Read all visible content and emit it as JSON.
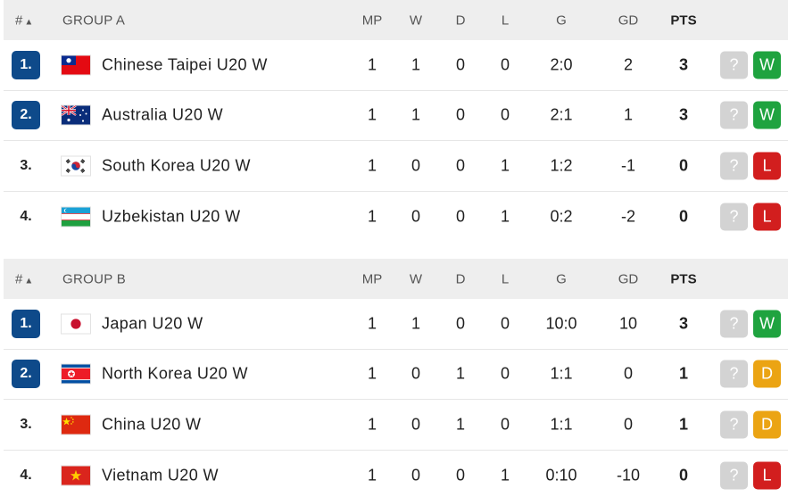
{
  "columns": {
    "rank": "#",
    "mp": "MP",
    "w": "W",
    "d": "D",
    "l": "L",
    "g": "G",
    "gd": "GD",
    "pts": "PTS"
  },
  "groups": [
    {
      "name": "GROUP A",
      "rows": [
        {
          "rank": "1.",
          "qualified": true,
          "team": "Chinese Taipei U20 W",
          "flag": "taiwan-flag-icon",
          "mp": "1",
          "w": "1",
          "d": "0",
          "l": "0",
          "g": "2:0",
          "gd": "2",
          "pts": "3",
          "next": "?",
          "form": "W"
        },
        {
          "rank": "2.",
          "qualified": true,
          "team": "Australia U20 W",
          "flag": "australia-flag-icon",
          "mp": "1",
          "w": "1",
          "d": "0",
          "l": "0",
          "g": "2:1",
          "gd": "1",
          "pts": "3",
          "next": "?",
          "form": "W"
        },
        {
          "rank": "3.",
          "qualified": false,
          "team": "South Korea U20 W",
          "flag": "south-korea-flag-icon",
          "mp": "1",
          "w": "0",
          "d": "0",
          "l": "1",
          "g": "1:2",
          "gd": "-1",
          "pts": "0",
          "next": "?",
          "form": "L"
        },
        {
          "rank": "4.",
          "qualified": false,
          "team": "Uzbekistan U20 W",
          "flag": "uzbekistan-flag-icon",
          "mp": "1",
          "w": "0",
          "d": "0",
          "l": "1",
          "g": "0:2",
          "gd": "-2",
          "pts": "0",
          "next": "?",
          "form": "L"
        }
      ]
    },
    {
      "name": "GROUP B",
      "rows": [
        {
          "rank": "1.",
          "qualified": true,
          "team": "Japan U20 W",
          "flag": "japan-flag-icon",
          "mp": "1",
          "w": "1",
          "d": "0",
          "l": "0",
          "g": "10:0",
          "gd": "10",
          "pts": "3",
          "next": "?",
          "form": "W"
        },
        {
          "rank": "2.",
          "qualified": true,
          "team": "North Korea U20 W",
          "flag": "north-korea-flag-icon",
          "mp": "1",
          "w": "0",
          "d": "1",
          "l": "0",
          "g": "1:1",
          "gd": "0",
          "pts": "1",
          "next": "?",
          "form": "D"
        },
        {
          "rank": "3.",
          "qualified": false,
          "team": "China U20 W",
          "flag": "china-flag-icon",
          "mp": "1",
          "w": "0",
          "d": "1",
          "l": "0",
          "g": "1:1",
          "gd": "0",
          "pts": "1",
          "next": "?",
          "form": "D"
        },
        {
          "rank": "4.",
          "qualified": false,
          "team": "Vietnam U20 W",
          "flag": "vietnam-flag-icon",
          "mp": "1",
          "w": "0",
          "d": "0",
          "l": "1",
          "g": "0:10",
          "gd": "-10",
          "pts": "0",
          "next": "?",
          "form": "L"
        }
      ]
    }
  ],
  "colors": {
    "qualified_rank": "#0e4a8a",
    "win": "#1fa33f",
    "draw": "#eba413",
    "loss": "#d21e1e",
    "next_match": "#d3d3d3"
  }
}
